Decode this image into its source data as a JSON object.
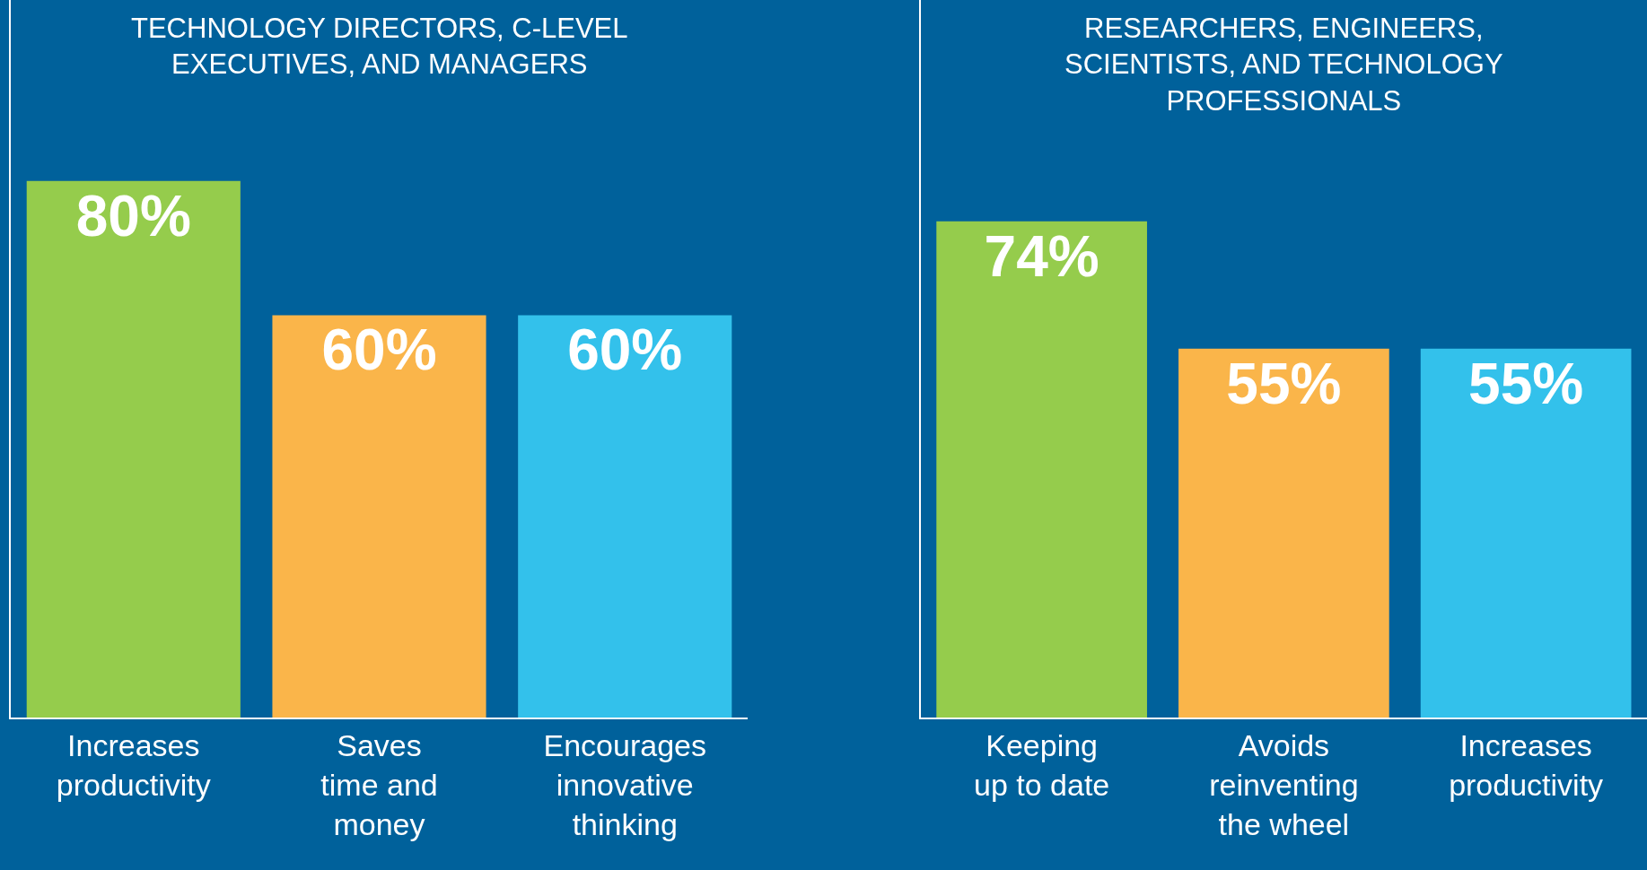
{
  "chart_data": [
    {
      "type": "bar",
      "title": "TECHNOLOGY DIRECTORS, C-LEVEL\nEXECUTIVES, AND MANAGERS",
      "categories": [
        "Increases\nproductivity",
        "Saves\ntime and\nmoney",
        "Encourages\ninnovative\nthinking"
      ],
      "values": [
        80,
        60,
        60
      ],
      "value_labels": [
        "80%",
        "60%",
        "60%"
      ],
      "colors": [
        "#95cc4c",
        "#fab54a",
        "#33c1eb"
      ],
      "ylim": [
        0,
        107
      ]
    },
    {
      "type": "bar",
      "title": "RESEARCHERS, ENGINEERS,\nSCIENTISTS, AND TECHNOLOGY\nPROFESSIONALS",
      "categories": [
        "Keeping\nup to date",
        "Avoids\nreinventing\nthe wheel",
        "Increases\nproductivity"
      ],
      "values": [
        74,
        55,
        55
      ],
      "value_labels": [
        "74%",
        "55%",
        "55%"
      ],
      "colors": [
        "#95cc4c",
        "#fab54a",
        "#33c1eb"
      ],
      "ylim": [
        0,
        107
      ]
    }
  ]
}
